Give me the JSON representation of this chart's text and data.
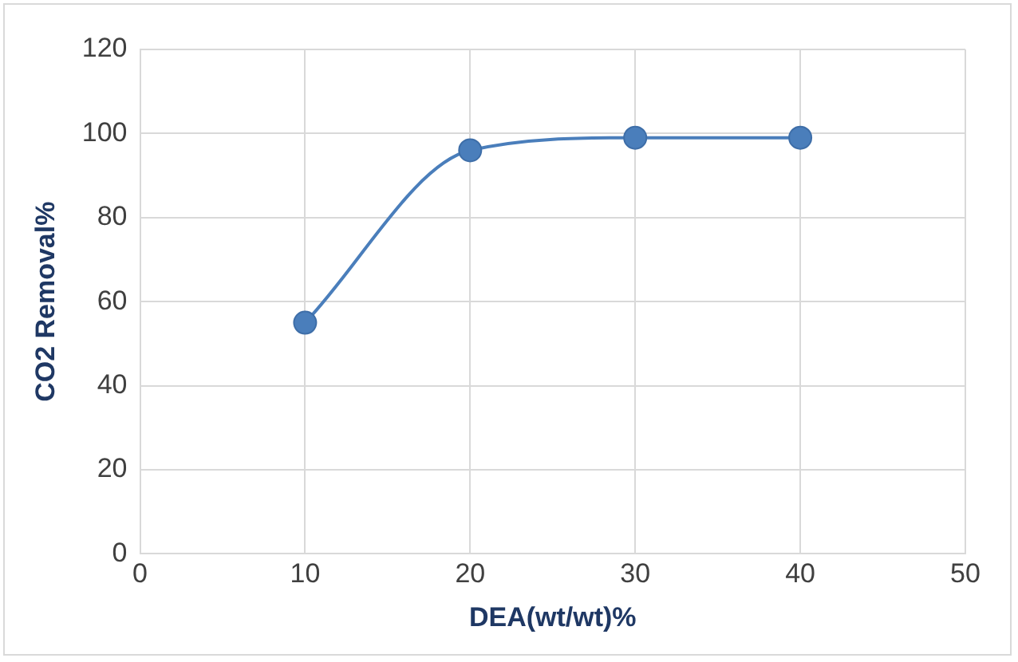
{
  "chart_data": {
    "type": "line",
    "xlabel": "DEA(wt/wt)%",
    "ylabel": "CO2 Removal%",
    "x": [
      10,
      20,
      30,
      40
    ],
    "series": [
      {
        "color": "#4a7ebb",
        "values": [
          55,
          96,
          99,
          99
        ]
      }
    ],
    "xlim": [
      0,
      50
    ],
    "xticks": [
      0,
      10,
      20,
      30,
      40,
      50
    ],
    "ylim": [
      0,
      120
    ],
    "yticks": [
      0,
      20,
      40,
      60,
      80,
      100,
      120
    ],
    "grid": true,
    "legend": false,
    "marker": "circle",
    "line_style": "solid"
  }
}
